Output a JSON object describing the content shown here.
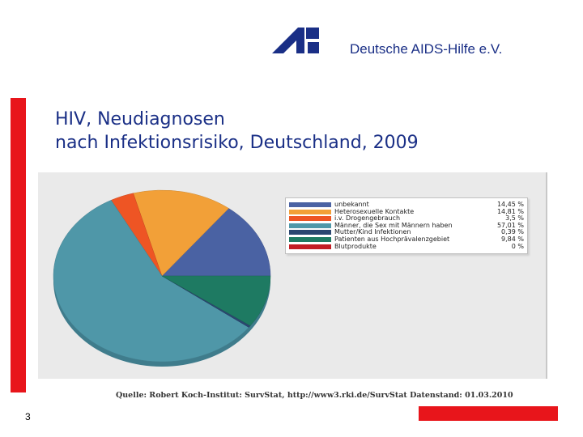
{
  "header": {
    "org_name": "Deutsche AIDS-Hilfe e.V."
  },
  "title": {
    "line1": "HIV, Neudiagnosen",
    "line2": "nach Infektionsrisiko, Deutschland, 2009"
  },
  "chart_data": {
    "type": "pie",
    "title": "HIV, Neudiagnosen nach Infektionsrisiko, Deutschland, 2009",
    "slices": [
      {
        "label": "unbekannt",
        "value_text": "14,45 %",
        "value": 14.45,
        "color": "#4a62a3"
      },
      {
        "label": "Heterosexuelle Kontakte",
        "value_text": "14,81 %",
        "value": 14.81,
        "color": "#f2a038"
      },
      {
        "label": "i.v. Drogengebrauch",
        "value_text": "3,5 %",
        "value": 3.5,
        "color": "#ee5524"
      },
      {
        "label": "Männer, die Sex mit Männern haben",
        "value_text": "57,01 %",
        "value": 57.01,
        "color": "#4f97a8"
      },
      {
        "label": "Mutter/Kind Infektionen",
        "value_text": "0,39 %",
        "value": 0.39,
        "color": "#2b4670"
      },
      {
        "label": "Patienten aus Hochprävalenzgebiet",
        "value_text": "9,84 %",
        "value": 9.84,
        "color": "#1e7a62"
      },
      {
        "label": "Blutprodukte",
        "value_text": "0 %",
        "value": 0,
        "color": "#c21d24"
      }
    ],
    "legend_position": "right"
  },
  "source": {
    "text": "Quelle: Robert Koch-Institut: SurvStat, http://www3.rki.de/SurvStat Datenstand: 01.03.2010"
  },
  "page": {
    "number": "3"
  },
  "colors": {
    "brand": "#1a2f86",
    "accent_red": "#e8151b"
  }
}
